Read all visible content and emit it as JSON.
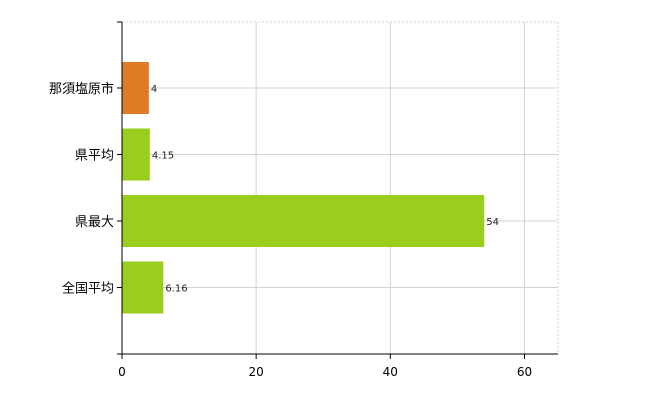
{
  "chart_data": {
    "type": "bar",
    "orientation": "horizontal",
    "categories": [
      "那須塩原市",
      "県平均",
      "県最大",
      "全国平均"
    ],
    "values": [
      4,
      4.15,
      54,
      6.16
    ],
    "data_labels": [
      "4",
      "4.15",
      "54",
      "6.16"
    ],
    "bar_colors": [
      "#e07b25",
      "#9acd1e",
      "#9acd1e",
      "#9acd1e"
    ],
    "xlim": [
      0,
      65
    ],
    "x_ticks": [
      0,
      20,
      40,
      60
    ],
    "x_tick_labels": [
      "0",
      "20",
      "40",
      "60"
    ],
    "grid": true
  }
}
